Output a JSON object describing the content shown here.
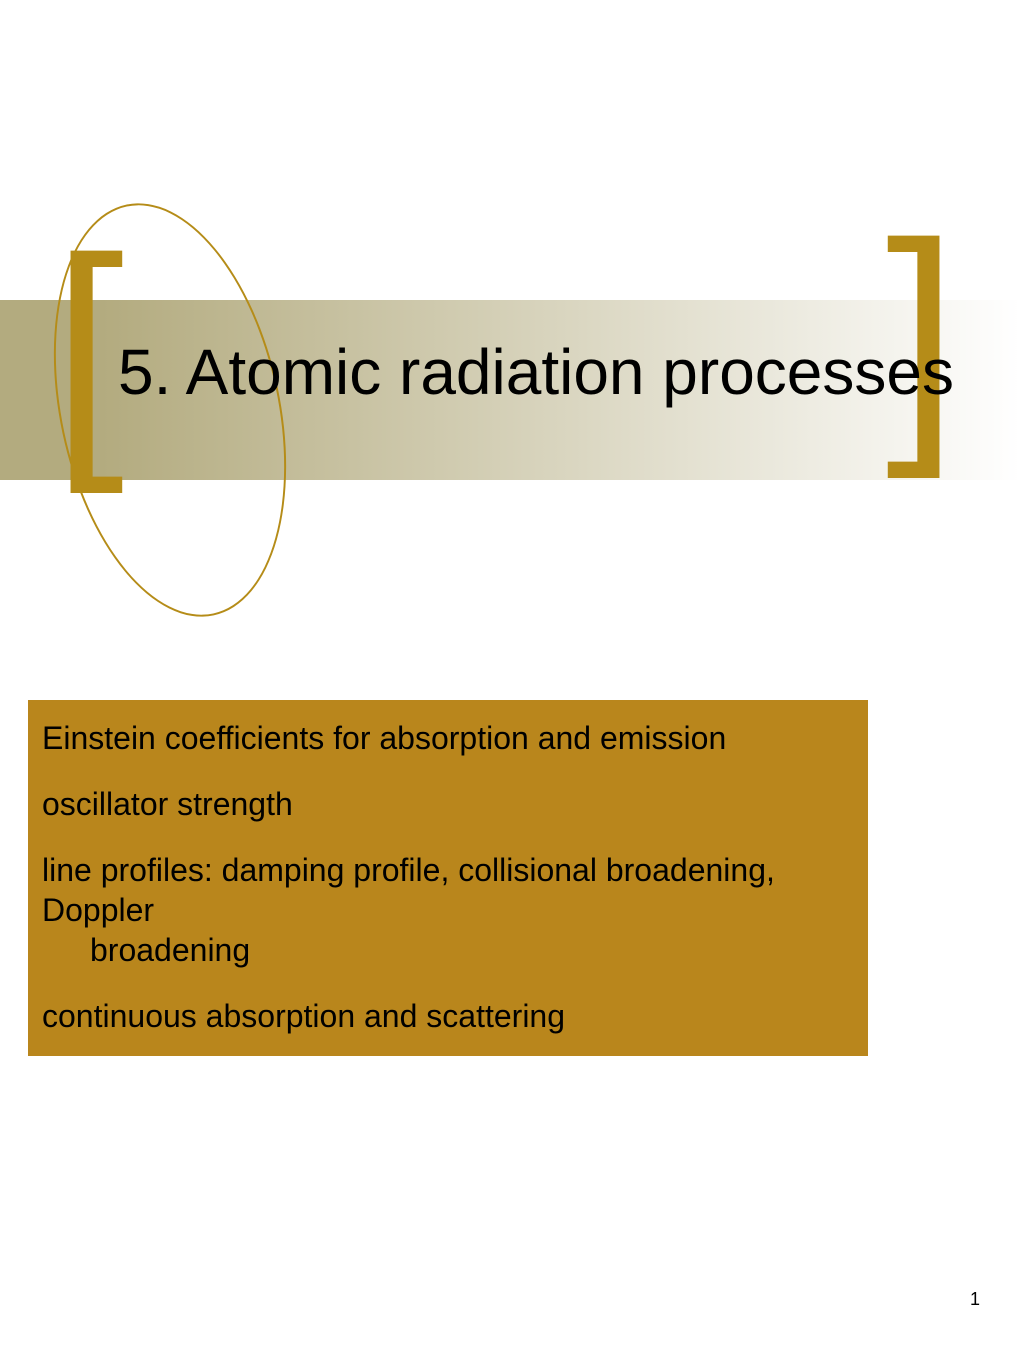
{
  "slide": {
    "title": "5. Atomic radiation processes",
    "title_color": "#000000",
    "title_fontsize": 64,
    "band": {
      "height": 180,
      "gradient_start": "#b3ab7f",
      "gradient_end": "#ffffff"
    },
    "brackets": {
      "color": "#b58c18",
      "left_glyph": "[",
      "right_glyph": "]",
      "fontsize": 260
    },
    "ellipse": {
      "stroke": "#b58c18",
      "stroke_width": 2
    },
    "content_panel": {
      "background": "#b9861c",
      "text_color": "#000000",
      "fontsize": 32,
      "items": [
        {
          "line1": "Einstein coefficients for absorption and emission",
          "line2": ""
        },
        {
          "line1": "oscillator strength",
          "line2": ""
        },
        {
          "line1": "line profiles: damping profile, collisional broadening, Doppler",
          "line2": "broadening"
        },
        {
          "line1": "continuous absorption and scattering",
          "line2": ""
        }
      ]
    },
    "page_number": "1"
  }
}
